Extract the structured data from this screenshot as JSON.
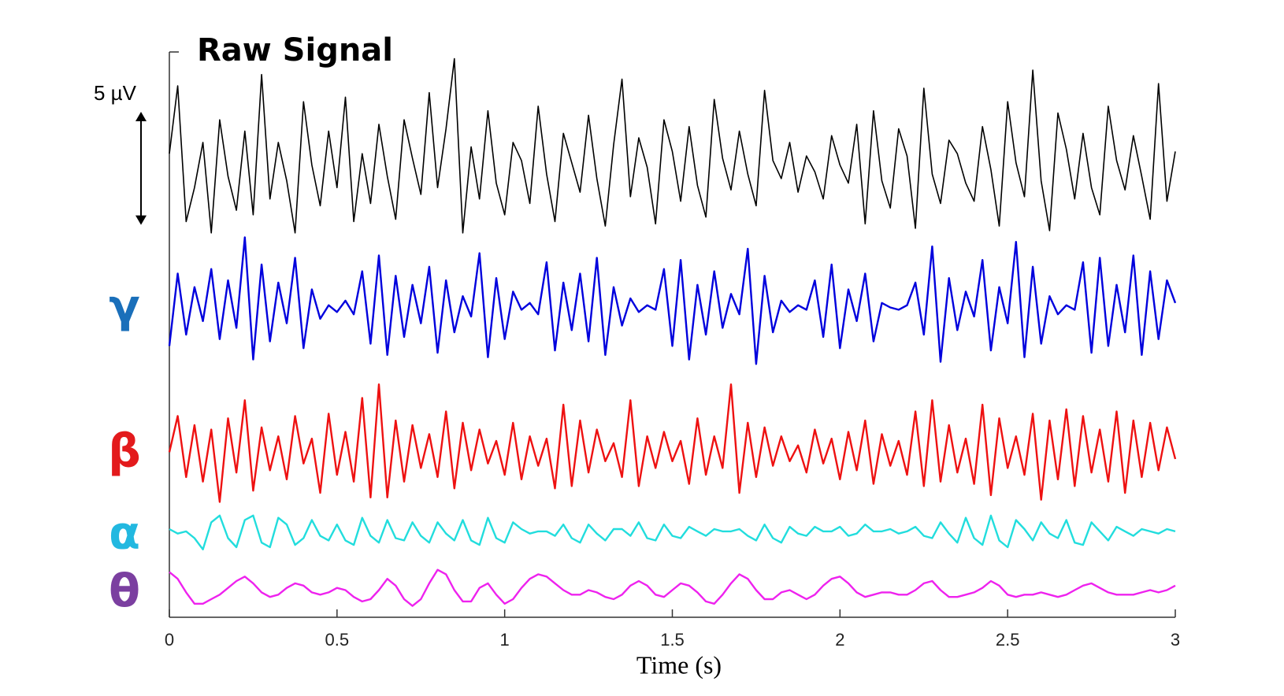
{
  "chart_data": {
    "type": "line",
    "xlabel": "Time (s)",
    "xlim": [
      0,
      3
    ],
    "xticks": [
      0,
      0.5,
      1,
      1.5,
      2,
      2.5,
      3
    ],
    "ylim": [
      0,
      25
    ],
    "scale_bar": {
      "label": "5 µV",
      "value": 5
    },
    "x": [
      0,
      0.025,
      0.05,
      0.075,
      0.1,
      0.125,
      0.15,
      0.175,
      0.2,
      0.225,
      0.25,
      0.275,
      0.3,
      0.325,
      0.35,
      0.375,
      0.4,
      0.425,
      0.45,
      0.475,
      0.5,
      0.525,
      0.55,
      0.575,
      0.6,
      0.625,
      0.65,
      0.675,
      0.7,
      0.725,
      0.75,
      0.775,
      0.8,
      0.825,
      0.85,
      0.875,
      0.9,
      0.925,
      0.95,
      0.975,
      1,
      1.025,
      1.05,
      1.075,
      1.1,
      1.125,
      1.15,
      1.175,
      1.2,
      1.225,
      1.25,
      1.275,
      1.3,
      1.325,
      1.35,
      1.375,
      1.4,
      1.425,
      1.45,
      1.475,
      1.5,
      1.525,
      1.55,
      1.575,
      1.6,
      1.625,
      1.65,
      1.675,
      1.7,
      1.725,
      1.75,
      1.775,
      1.8,
      1.825,
      1.85,
      1.875,
      1.9,
      1.925,
      1.95,
      1.975,
      2,
      2.025,
      2.05,
      2.075,
      2.1,
      2.125,
      2.15,
      2.175,
      2.2,
      2.225,
      2.25,
      2.275,
      2.3,
      2.325,
      2.35,
      2.375,
      2.4,
      2.425,
      2.45,
      2.475,
      2.5,
      2.525,
      2.55,
      2.575,
      2.6,
      2.625,
      2.65,
      2.675,
      2.7,
      2.725,
      2.75,
      2.775,
      2.8,
      2.825,
      2.85,
      2.875,
      2.9,
      2.925,
      2.95,
      2.975,
      3
    ],
    "series": [
      {
        "name": "Raw Signal",
        "color": "#000000",
        "name_color": "#000000",
        "values": [
          20.5,
          23.5,
          17.5,
          19.0,
          21.0,
          17.0,
          22.0,
          19.5,
          18.0,
          21.5,
          17.8,
          24.0,
          18.5,
          21.0,
          19.3,
          17.0,
          22.8,
          20.0,
          18.2,
          21.5,
          19.0,
          23.0,
          17.5,
          20.5,
          18.3,
          21.8,
          19.5,
          17.6,
          22.0,
          20.3,
          18.7,
          23.2,
          19.0,
          21.6,
          24.7,
          17.0,
          20.8,
          18.5,
          22.4,
          19.2,
          17.8,
          21.0,
          20.2,
          18.3,
          22.6,
          19.6,
          17.5,
          21.4,
          20.1,
          18.8,
          22.2,
          19.4,
          17.3,
          20.9,
          23.8,
          18.6,
          21.2,
          19.9,
          17.4,
          22.0,
          20.6,
          18.4,
          21.7,
          19.1,
          17.7,
          22.9,
          20.3,
          18.9,
          21.5,
          19.6,
          18.2,
          23.3,
          20.2,
          19.4,
          21.0,
          18.8,
          20.4,
          19.7,
          18.5,
          21.3,
          20.0,
          19.2,
          21.8,
          17.4,
          22.4,
          19.3,
          18.1,
          21.6,
          20.4,
          17.2,
          23.4,
          19.6,
          18.3,
          21.1,
          20.5,
          19.2,
          18.4,
          21.7,
          19.8,
          17.3,
          22.8,
          20.1,
          18.6,
          24.2,
          19.3,
          17.1,
          22.3,
          20.7,
          18.5,
          21.4,
          19.0,
          17.8,
          22.6,
          20.2,
          18.9,
          21.3,
          19.5,
          17.6,
          23.6,
          18.4,
          20.6
        ]
      },
      {
        "name": "γ",
        "color": "#0000dd",
        "name_color": "#1a6fba",
        "values": [
          12.0,
          15.2,
          12.5,
          14.6,
          13.1,
          15.4,
          12.3,
          14.9,
          12.8,
          16.8,
          11.4,
          15.6,
          12.2,
          14.8,
          13.0,
          15.9,
          11.9,
          14.5,
          13.2,
          13.8,
          13.5,
          14.0,
          13.4,
          15.3,
          12.1,
          16.0,
          11.6,
          15.1,
          12.4,
          14.7,
          13.0,
          15.5,
          11.7,
          14.9,
          12.6,
          14.2,
          13.3,
          16.1,
          11.5,
          15.0,
          12.3,
          14.4,
          13.6,
          13.9,
          13.4,
          15.7,
          11.8,
          14.8,
          12.7,
          15.2,
          12.2,
          15.9,
          11.6,
          14.6,
          12.9,
          14.1,
          13.5,
          13.8,
          13.6,
          15.4,
          12.0,
          15.8,
          11.4,
          14.7,
          12.5,
          15.3,
          12.8,
          14.3,
          13.4,
          16.3,
          11.2,
          15.1,
          12.6,
          14.0,
          13.5,
          13.8,
          13.6,
          14.9,
          12.4,
          15.6,
          11.9,
          14.5,
          13.1,
          15.2,
          12.2,
          13.9,
          13.7,
          13.6,
          13.8,
          14.8,
          12.5,
          16.4,
          11.3,
          15.0,
          12.7,
          14.4,
          13.3,
          15.8,
          11.8,
          14.6,
          13.0,
          16.6,
          11.5,
          15.5,
          12.1,
          14.2,
          13.4,
          13.8,
          13.6,
          15.7,
          11.7,
          15.9,
          12.0,
          14.7,
          12.6,
          16.0,
          11.6,
          15.3,
          12.3,
          14.9,
          13.9
        ]
      },
      {
        "name": "β",
        "color": "#ee1111",
        "name_color": "#e31a1c",
        "values": [
          7.3,
          8.9,
          6.2,
          8.5,
          6.0,
          8.3,
          5.1,
          8.8,
          6.4,
          9.6,
          5.6,
          8.4,
          6.5,
          8.0,
          6.1,
          8.9,
          6.8,
          7.9,
          5.5,
          9.0,
          6.3,
          8.2,
          6.0,
          9.7,
          5.3,
          10.3,
          5.3,
          8.7,
          6.0,
          8.5,
          6.6,
          8.1,
          6.2,
          9.1,
          5.7,
          8.6,
          6.5,
          8.3,
          6.8,
          7.8,
          6.3,
          8.6,
          6.1,
          8.0,
          6.7,
          7.9,
          5.7,
          9.4,
          5.8,
          8.7,
          6.4,
          8.3,
          6.9,
          7.7,
          6.2,
          9.6,
          5.8,
          8.0,
          6.6,
          8.2,
          6.9,
          7.8,
          5.9,
          8.8,
          6.3,
          8.0,
          6.6,
          10.3,
          5.5,
          8.6,
          6.2,
          8.4,
          6.7,
          8.0,
          6.9,
          7.6,
          6.4,
          8.3,
          6.8,
          7.9,
          6.1,
          8.2,
          6.5,
          8.7,
          5.9,
          8.1,
          6.7,
          7.8,
          6.3,
          9.1,
          5.8,
          9.6,
          6.0,
          8.5,
          6.4,
          7.9,
          5.9,
          9.4,
          5.4,
          8.8,
          6.6,
          8.0,
          6.3,
          9.0,
          5.2,
          8.7,
          6.1,
          9.2,
          5.8,
          8.9,
          6.4,
          8.3,
          6.0,
          9.1,
          5.5,
          8.7,
          6.2,
          8.6,
          6.5,
          8.4,
          7.0
        ]
      },
      {
        "name": "α",
        "color": "#22dddd",
        "name_color": "#22b8e0",
        "values": [
          3.9,
          3.7,
          3.8,
          3.5,
          3.0,
          4.2,
          4.5,
          3.5,
          3.1,
          4.3,
          4.5,
          3.3,
          3.1,
          4.4,
          4.1,
          3.2,
          3.5,
          4.3,
          3.6,
          3.4,
          4.1,
          3.4,
          3.2,
          4.4,
          3.6,
          3.3,
          4.3,
          3.5,
          3.4,
          4.2,
          3.6,
          3.3,
          4.2,
          3.7,
          3.4,
          4.3,
          3.4,
          3.2,
          4.4,
          3.5,
          3.3,
          4.2,
          3.9,
          3.7,
          3.8,
          3.8,
          3.6,
          4.1,
          3.5,
          3.3,
          4.1,
          3.7,
          3.4,
          3.9,
          3.9,
          3.6,
          4.2,
          3.5,
          3.4,
          4.1,
          3.6,
          3.5,
          4.0,
          3.8,
          3.6,
          3.9,
          3.8,
          3.8,
          3.9,
          3.6,
          3.4,
          4.1,
          3.5,
          3.3,
          4.0,
          3.7,
          3.6,
          4.0,
          3.8,
          3.8,
          4.0,
          3.6,
          3.7,
          4.1,
          3.8,
          3.8,
          3.9,
          3.7,
          3.8,
          4.0,
          3.6,
          3.5,
          4.2,
          3.7,
          3.3,
          4.4,
          3.5,
          3.2,
          4.5,
          3.4,
          3.1,
          4.3,
          3.9,
          3.4,
          4.2,
          3.7,
          3.5,
          4.3,
          3.3,
          3.2,
          4.2,
          3.8,
          3.4,
          4.0,
          3.8,
          3.6,
          3.9,
          3.8,
          3.7,
          3.9,
          3.8
        ]
      },
      {
        "name": "θ",
        "color": "#ee22ee",
        "name_color": "#7b3fa0",
        "values": [
          2.0,
          1.7,
          1.1,
          0.6,
          0.6,
          0.8,
          1.0,
          1.3,
          1.6,
          1.8,
          1.5,
          1.1,
          0.9,
          1.0,
          1.3,
          1.5,
          1.4,
          1.1,
          1.0,
          1.1,
          1.3,
          1.2,
          0.9,
          0.7,
          0.8,
          1.2,
          1.7,
          1.4,
          0.8,
          0.5,
          0.8,
          1.5,
          2.1,
          1.9,
          1.2,
          0.7,
          0.7,
          1.3,
          1.5,
          1.0,
          0.6,
          0.8,
          1.3,
          1.7,
          1.9,
          1.8,
          1.5,
          1.2,
          1.0,
          1.0,
          1.2,
          1.1,
          0.9,
          0.8,
          1.0,
          1.4,
          1.6,
          1.4,
          1.0,
          0.9,
          1.2,
          1.5,
          1.4,
          1.1,
          0.7,
          0.6,
          1.0,
          1.5,
          1.9,
          1.7,
          1.2,
          0.8,
          0.8,
          1.1,
          1.2,
          1.0,
          0.8,
          1.0,
          1.4,
          1.7,
          1.8,
          1.5,
          1.1,
          0.9,
          1.0,
          1.1,
          1.1,
          1.0,
          1.0,
          1.2,
          1.5,
          1.6,
          1.2,
          0.9,
          0.9,
          1.0,
          1.1,
          1.3,
          1.6,
          1.4,
          1.0,
          0.9,
          1.0,
          1.0,
          1.1,
          1.0,
          0.9,
          1.0,
          1.2,
          1.4,
          1.5,
          1.3,
          1.1,
          1.0,
          1.0,
          1.0,
          1.1,
          1.2,
          1.1,
          1.2,
          1.4
        ]
      }
    ]
  }
}
